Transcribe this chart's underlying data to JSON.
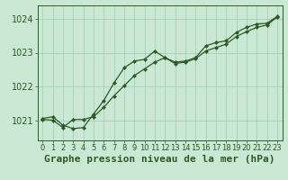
{
  "title": "Graphe pression niveau de la mer (hPa)",
  "background_color": "#cbe8d4",
  "grid_color": "#9ecfb0",
  "line_color": "#2d5a27",
  "x_ticks": [
    0,
    1,
    2,
    3,
    4,
    5,
    6,
    7,
    8,
    9,
    10,
    11,
    12,
    13,
    14,
    15,
    16,
    17,
    18,
    19,
    20,
    21,
    22,
    23
  ],
  "y_ticks": [
    1021,
    1022,
    1023,
    1024
  ],
  "ylim": [
    1020.4,
    1024.4
  ],
  "xlim": [
    -0.5,
    23.5
  ],
  "line1_y": [
    1021.05,
    1021.1,
    1020.85,
    1020.75,
    1020.78,
    1021.18,
    1021.58,
    1022.1,
    1022.55,
    1022.75,
    1022.8,
    1023.05,
    1022.85,
    1022.72,
    1022.75,
    1022.85,
    1023.2,
    1023.3,
    1023.35,
    1023.6,
    1023.75,
    1023.85,
    1023.87,
    1024.07
  ],
  "line2_y": [
    1021.02,
    1021.0,
    1020.78,
    1021.02,
    1021.02,
    1021.1,
    1021.38,
    1021.72,
    1022.02,
    1022.32,
    1022.52,
    1022.72,
    1022.85,
    1022.68,
    1022.72,
    1022.82,
    1023.05,
    1023.15,
    1023.25,
    1023.48,
    1023.62,
    1023.75,
    1023.82,
    1024.05
  ],
  "title_fontsize": 8,
  "tick_fontsize": 6,
  "marker_size": 2.2,
  "line_width": 0.9
}
